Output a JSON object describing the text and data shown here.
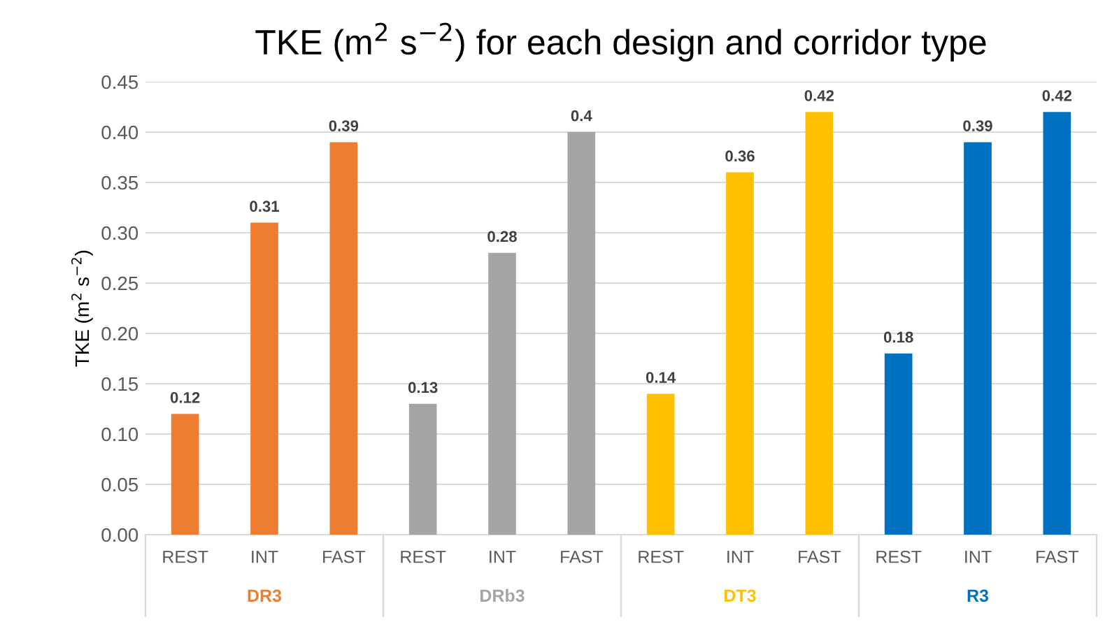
{
  "chart_data": {
    "type": "bar",
    "title": "TKE (m$^{2}$ s$^{−2}$) for each design and corridor type",
    "ylabel": "TKE (m$^{2}$ s$^{−2}$)",
    "categories": [
      "REST",
      "INT",
      "FAST",
      "REST",
      "INT",
      "FAST",
      "REST",
      "INT",
      "FAST",
      "REST",
      "INT",
      "FAST"
    ],
    "series": [
      {
        "name": "DR3",
        "color": "#ed7d31",
        "values": [
          0.12,
          0.31,
          0.39,
          null,
          null,
          null,
          null,
          null,
          null,
          null,
          null,
          null
        ]
      },
      {
        "name": "DRb3",
        "color": "#a5a5a5",
        "values": [
          null,
          null,
          null,
          0.13,
          0.28,
          0.4,
          null,
          null,
          null,
          null,
          null,
          null
        ]
      },
      {
        "name": "DT3",
        "color": "#ffc000",
        "values": [
          null,
          null,
          null,
          null,
          null,
          null,
          0.14,
          0.36,
          0.42,
          null,
          null,
          null
        ]
      },
      {
        "name": "R3",
        "color": "#0070c0",
        "values": [
          null,
          null,
          null,
          null,
          null,
          null,
          null,
          null,
          null,
          0.18,
          0.39,
          0.42
        ]
      }
    ],
    "ylim": [
      0,
      0.45
    ],
    "yticks": [
      {
        "value": 0,
        "label": "0.00"
      },
      {
        "value": 0.05,
        "label": "0.05"
      },
      {
        "value": 0.1,
        "label": "0.10"
      },
      {
        "value": 0.15,
        "label": "0.15"
      },
      {
        "value": 0.2,
        "label": "0.20"
      },
      {
        "value": 0.25,
        "label": "0.25"
      },
      {
        "value": 0.3,
        "label": "0.30"
      },
      {
        "value": 0.35,
        "label": "0.35"
      },
      {
        "value": 0.4,
        "label": "0.40"
      },
      {
        "value": 0.45,
        "label": "0.45"
      }
    ],
    "grid": "y",
    "data_labels": true,
    "legend": false
  }
}
